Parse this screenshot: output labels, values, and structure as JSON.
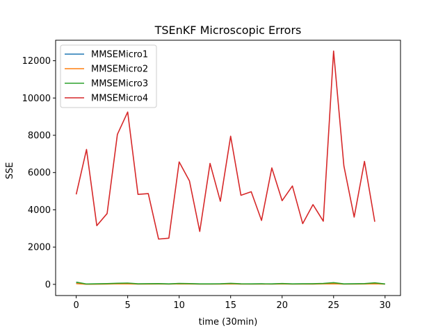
{
  "chart_data": {
    "type": "line",
    "title": "TSEnKF Microscopic Errors",
    "xlabel": "time (30min)",
    "ylabel": "SSE",
    "xlim": [
      -2.0,
      31.5
    ],
    "ylim": [
      -600,
      13100
    ],
    "xticks": [
      0,
      5,
      10,
      15,
      20,
      25,
      30
    ],
    "yticks": [
      0,
      2000,
      4000,
      6000,
      8000,
      10000,
      12000
    ],
    "grid": false,
    "legend_position": "top-left",
    "x": [
      0,
      1,
      2,
      3,
      4,
      5,
      6,
      7,
      8,
      9,
      10,
      11,
      12,
      13,
      14,
      15,
      16,
      17,
      18,
      19,
      20,
      21,
      22,
      23,
      24,
      25,
      26,
      27,
      28,
      29,
      30
    ],
    "series": [
      {
        "name": "MMSEMicro1",
        "color": "#1f77b4",
        "values": [
          60,
          10,
          20,
          25,
          40,
          45,
          20,
          25,
          30,
          20,
          35,
          30,
          20,
          20,
          25,
          35,
          20,
          20,
          25,
          20,
          30,
          20,
          25,
          20,
          35,
          40,
          20,
          25,
          30,
          40,
          20
        ]
      },
      {
        "name": "MMSEMicro2",
        "color": "#ff7f0e",
        "values": [
          40,
          5,
          10,
          15,
          30,
          25,
          15,
          15,
          20,
          15,
          25,
          20,
          15,
          15,
          15,
          25,
          15,
          15,
          15,
          15,
          20,
          15,
          15,
          15,
          25,
          30,
          15,
          15,
          20,
          30,
          15
        ]
      },
      {
        "name": "MMSEMicro3",
        "color": "#2ca02c",
        "values": [
          120,
          20,
          30,
          40,
          60,
          70,
          30,
          35,
          40,
          25,
          50,
          40,
          25,
          25,
          30,
          55,
          30,
          25,
          30,
          25,
          45,
          25,
          30,
          35,
          50,
          90,
          25,
          30,
          40,
          80,
          20
        ]
      },
      {
        "name": "MMSEMicro4",
        "color": "#d62728",
        "values": [
          4830,
          7240,
          3150,
          3800,
          8050,
          9250,
          4830,
          4870,
          2430,
          2480,
          6570,
          5550,
          2840,
          6490,
          4460,
          7950,
          4780,
          4970,
          3430,
          6250,
          4490,
          5280,
          3260,
          4280,
          3390,
          12520,
          6360,
          3610,
          6600,
          3360,
          null
        ]
      }
    ]
  }
}
